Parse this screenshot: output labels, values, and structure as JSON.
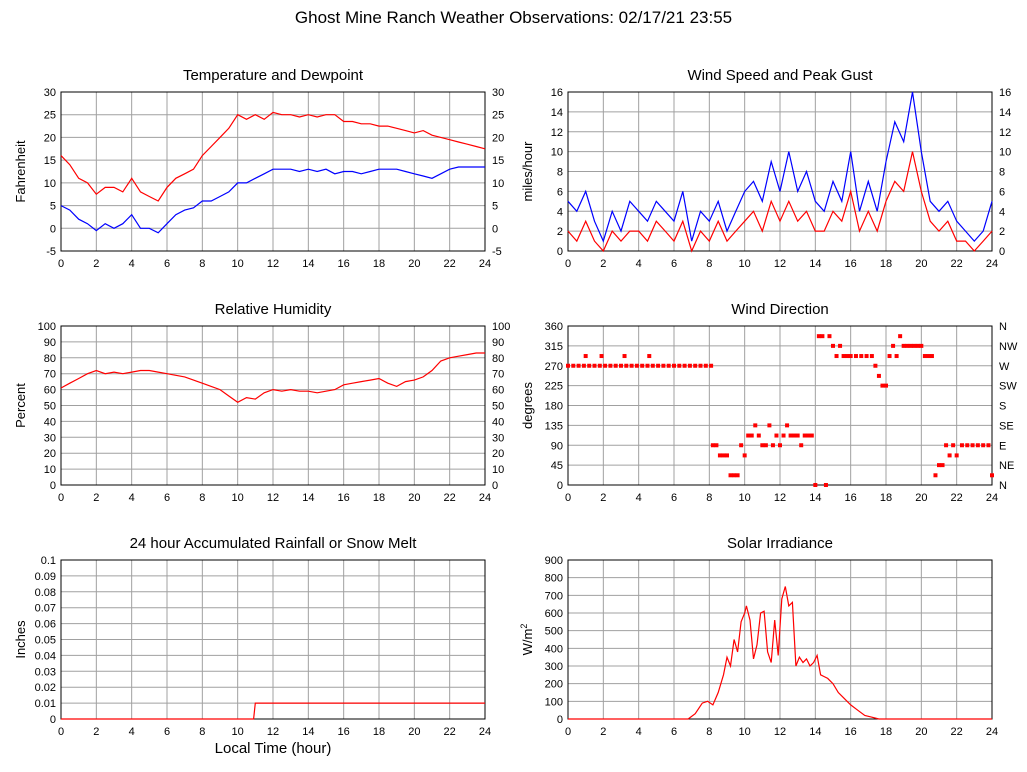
{
  "title": "Ghost Mine Ranch Weather Observations: 02/17/21 23:55",
  "colors": {
    "red": "#ff0000",
    "blue": "#0000ff",
    "grid": "#a0a0a0",
    "axis": "#000000"
  },
  "chart_data": [
    {
      "type": "line",
      "title": "Temperature and Dewpoint",
      "ylabel": "Fahrenheit",
      "xlim": [
        0,
        24
      ],
      "ylim": [
        -5,
        30
      ],
      "xticks": [
        0,
        2,
        4,
        6,
        8,
        10,
        12,
        14,
        16,
        18,
        20,
        22,
        24
      ],
      "yticks": [
        -5,
        0,
        5,
        10,
        15,
        20,
        25,
        30
      ],
      "right_axis": [
        -5,
        0,
        5,
        10,
        15,
        20,
        25,
        30
      ],
      "grid": true,
      "series": [
        {
          "color": "#ff0000",
          "x": [
            0,
            0.5,
            1,
            1.5,
            2,
            2.5,
            3,
            3.5,
            4,
            4.5,
            5,
            5.5,
            6,
            6.5,
            7,
            7.5,
            8,
            8.5,
            9,
            9.5,
            10,
            10.5,
            11,
            11.5,
            12,
            12.5,
            13,
            13.5,
            14,
            14.5,
            15,
            15.5,
            16,
            16.5,
            17,
            17.5,
            18,
            18.5,
            19,
            19.5,
            20,
            20.5,
            21,
            21.5,
            22,
            22.5,
            23,
            23.5,
            24
          ],
          "y": [
            16,
            14,
            11,
            10,
            7.5,
            9,
            9,
            8,
            11,
            8,
            7,
            6,
            9,
            11,
            12,
            13,
            16,
            18,
            20,
            22,
            25,
            24,
            25,
            24,
            25.5,
            25,
            25,
            24.5,
            25,
            24.5,
            25,
            25,
            23.5,
            23.5,
            23,
            23,
            22.5,
            22.5,
            22,
            21.5,
            21,
            21.5,
            20.5,
            20,
            19.5,
            19,
            18.5,
            18,
            17.5
          ]
        },
        {
          "color": "#0000ff",
          "x": [
            0,
            0.5,
            1,
            1.5,
            2,
            2.5,
            3,
            3.5,
            4,
            4.5,
            5,
            5.5,
            6,
            6.5,
            7,
            7.5,
            8,
            8.5,
            9,
            9.5,
            10,
            10.5,
            11,
            11.5,
            12,
            12.5,
            13,
            13.5,
            14,
            14.5,
            15,
            15.5,
            16,
            16.5,
            17,
            17.5,
            18,
            18.5,
            19,
            19.5,
            20,
            20.5,
            21,
            21.5,
            22,
            22.5,
            23,
            23.5,
            24
          ],
          "y": [
            5,
            4,
            2,
            1,
            -0.5,
            1,
            0,
            1,
            3,
            0,
            0,
            -1,
            1,
            3,
            4,
            4.5,
            6,
            6,
            7,
            8,
            10,
            10,
            11,
            12,
            13,
            13,
            13,
            12.5,
            13,
            12.5,
            13,
            12,
            12.5,
            12.5,
            12,
            12.5,
            13,
            13,
            13,
            12.5,
            12,
            11.5,
            11,
            12,
            13,
            13.5,
            13.5,
            13.5,
            13.5
          ]
        }
      ]
    },
    {
      "type": "line",
      "title": "Wind Speed and Peak Gust",
      "ylabel": "miles/hour",
      "xlim": [
        0,
        24
      ],
      "ylim": [
        0,
        16
      ],
      "xticks": [
        0,
        2,
        4,
        6,
        8,
        10,
        12,
        14,
        16,
        18,
        20,
        22,
        24
      ],
      "yticks": [
        0,
        2,
        4,
        6,
        8,
        10,
        12,
        14,
        16
      ],
      "right_axis": [
        0,
        2,
        4,
        6,
        8,
        10,
        12,
        14,
        16
      ],
      "grid": true,
      "series": [
        {
          "color": "#0000ff",
          "x": [
            0,
            0.5,
            1,
            1.5,
            2,
            2.5,
            3,
            3.5,
            4,
            4.5,
            5,
            5.5,
            6,
            6.5,
            7,
            7.5,
            8,
            8.5,
            9,
            9.5,
            10,
            10.5,
            11,
            11.5,
            12,
            12.5,
            13,
            13.5,
            14,
            14.5,
            15,
            15.5,
            16,
            16.5,
            17,
            17.5,
            18,
            18.5,
            19,
            19.5,
            20,
            20.5,
            21,
            21.5,
            22,
            22.5,
            23,
            23.5,
            24
          ],
          "y": [
            5,
            4,
            6,
            3,
            1,
            4,
            2,
            5,
            4,
            3,
            5,
            4,
            3,
            6,
            1,
            4,
            3,
            5,
            2,
            4,
            6,
            7,
            5,
            9,
            6,
            10,
            6,
            8,
            5,
            4,
            7,
            5,
            10,
            4,
            7,
            4,
            9,
            13,
            11,
            16,
            10,
            5,
            4,
            5,
            3,
            2,
            1,
            2,
            5
          ]
        },
        {
          "color": "#ff0000",
          "x": [
            0,
            0.5,
            1,
            1.5,
            2,
            2.5,
            3,
            3.5,
            4,
            4.5,
            5,
            5.5,
            6,
            6.5,
            7,
            7.5,
            8,
            8.5,
            9,
            9.5,
            10,
            10.5,
            11,
            11.5,
            12,
            12.5,
            13,
            13.5,
            14,
            14.5,
            15,
            15.5,
            16,
            16.5,
            17,
            17.5,
            18,
            18.5,
            19,
            19.5,
            20,
            20.5,
            21,
            21.5,
            22,
            22.5,
            23,
            23.5,
            24
          ],
          "y": [
            2,
            1,
            3,
            1,
            0,
            2,
            1,
            2,
            2,
            1,
            3,
            2,
            1,
            3,
            0,
            2,
            1,
            3,
            1,
            2,
            3,
            4,
            2,
            5,
            3,
            5,
            3,
            4,
            2,
            2,
            4,
            3,
            6,
            2,
            4,
            2,
            5,
            7,
            6,
            10,
            6,
            3,
            2,
            3,
            1,
            1,
            0,
            1,
            2
          ]
        }
      ]
    },
    {
      "type": "line",
      "title": "Relative Humidity",
      "ylabel": "Percent",
      "xlim": [
        0,
        24
      ],
      "ylim": [
        0,
        100
      ],
      "xticks": [
        0,
        2,
        4,
        6,
        8,
        10,
        12,
        14,
        16,
        18,
        20,
        22,
        24
      ],
      "yticks": [
        0,
        10,
        20,
        30,
        40,
        50,
        60,
        70,
        80,
        90,
        100
      ],
      "right_axis": [
        0,
        10,
        20,
        30,
        40,
        50,
        60,
        70,
        80,
        90,
        100
      ],
      "grid": true,
      "series": [
        {
          "color": "#ff0000",
          "x": [
            0,
            0.5,
            1,
            1.5,
            2,
            2.5,
            3,
            3.5,
            4,
            4.5,
            5,
            5.5,
            6,
            6.5,
            7,
            7.5,
            8,
            8.5,
            9,
            9.5,
            10,
            10.5,
            11,
            11.5,
            12,
            12.5,
            13,
            13.5,
            14,
            14.5,
            15,
            15.5,
            16,
            16.5,
            17,
            17.5,
            18,
            18.5,
            19,
            19.5,
            20,
            20.5,
            21,
            21.5,
            22,
            22.5,
            23,
            23.5,
            24
          ],
          "y": [
            61,
            64,
            67,
            70,
            72,
            70,
            71,
            70,
            71,
            72,
            72,
            71,
            70,
            69,
            68,
            66,
            64,
            62,
            60,
            56,
            52,
            55,
            54,
            58,
            60,
            59,
            60,
            59,
            59,
            58,
            59,
            60,
            63,
            64,
            65,
            66,
            67,
            64,
            62,
            65,
            66,
            68,
            72,
            78,
            80,
            81,
            82,
            83,
            83
          ]
        }
      ]
    },
    {
      "type": "scatter",
      "title": "Wind Direction",
      "ylabel": "degrees",
      "xlim": [
        0,
        24
      ],
      "ylim": [
        0,
        360
      ],
      "xticks": [
        0,
        2,
        4,
        6,
        8,
        10,
        12,
        14,
        16,
        18,
        20,
        22,
        24
      ],
      "yticks": [
        0,
        45,
        90,
        135,
        180,
        225,
        270,
        315,
        360
      ],
      "right_axis_labels": [
        "N",
        "NE",
        "E",
        "SE",
        "S",
        "SW",
        "W",
        "NW",
        "N"
      ],
      "grid": true,
      "series": [
        {
          "color": "#ff0000",
          "x": [
            0,
            0.3,
            0.6,
            0.9,
            1.0,
            1.2,
            1.5,
            1.8,
            1.9,
            2.1,
            2.4,
            2.7,
            3.0,
            3.2,
            3.3,
            3.6,
            3.9,
            4.2,
            4.5,
            4.6,
            4.8,
            5.1,
            5.4,
            5.7,
            6.0,
            6.3,
            6.6,
            6.9,
            7.2,
            7.5,
            7.8,
            8.1,
            8.2,
            8.4,
            8.6,
            8.8,
            9.0,
            9.2,
            9.4,
            9.6,
            9.8,
            10.0,
            10.2,
            10.4,
            10.6,
            10.8,
            11.0,
            11.2,
            11.4,
            11.6,
            11.8,
            12.0,
            12.2,
            12.4,
            12.6,
            12.8,
            13.0,
            13.2,
            13.4,
            13.6,
            13.8,
            14.0,
            14.2,
            14.4,
            14.6,
            14.8,
            15.0,
            15.2,
            15.4,
            15.6,
            15.8,
            16.0,
            16.3,
            16.6,
            16.9,
            17.2,
            17.4,
            17.6,
            17.8,
            18.0,
            18.2,
            18.4,
            18.6,
            18.8,
            19.0,
            19.2,
            19.4,
            19.6,
            19.8,
            20.0,
            20.2,
            20.4,
            20.6,
            20.8,
            21.0,
            21.2,
            21.4,
            21.6,
            21.8,
            22.0,
            22.3,
            22.6,
            22.9,
            23.2,
            23.5,
            23.8,
            24.0
          ],
          "y": [
            270,
            270,
            270,
            270,
            292,
            270,
            270,
            270,
            292,
            270,
            270,
            270,
            270,
            292,
            270,
            270,
            270,
            270,
            270,
            292,
            270,
            270,
            270,
            270,
            270,
            270,
            270,
            270,
            270,
            270,
            270,
            270,
            90,
            90,
            67,
            67,
            67,
            22,
            22,
            22,
            90,
            67,
            112,
            112,
            135,
            112,
            90,
            90,
            135,
            90,
            112,
            90,
            112,
            135,
            112,
            112,
            112,
            90,
            112,
            112,
            112,
            0,
            337,
            337,
            0,
            337,
            315,
            292,
            315,
            292,
            292,
            292,
            292,
            292,
            292,
            292,
            270,
            247,
            225,
            225,
            292,
            315,
            292,
            337,
            315,
            315,
            315,
            315,
            315,
            315,
            292,
            292,
            292,
            22,
            45,
            45,
            90,
            67,
            90,
            67,
            90,
            90,
            90,
            90,
            90,
            90,
            22
          ]
        }
      ]
    },
    {
      "type": "line",
      "title": "24 hour Accumulated Rainfall or Snow Melt",
      "ylabel": "Inches",
      "xlabel": "Local Time (hour)",
      "xlim": [
        0,
        24
      ],
      "ylim": [
        0,
        0.1
      ],
      "xticks": [
        0,
        2,
        4,
        6,
        8,
        10,
        12,
        14,
        16,
        18,
        20,
        22,
        24
      ],
      "yticks": [
        0,
        0.01,
        0.02,
        0.03,
        0.04,
        0.05,
        0.06,
        0.07,
        0.08,
        0.09,
        0.1
      ],
      "grid": true,
      "series": [
        {
          "color": "#ff0000",
          "x": [
            0,
            10.9,
            11.0,
            24
          ],
          "y": [
            0,
            0,
            0.01,
            0.01
          ]
        }
      ]
    },
    {
      "type": "line",
      "title": "Solar Irradiance",
      "ylabel": "W/m",
      "ylabel_sup": "2",
      "xlim": [
        0,
        24
      ],
      "ylim": [
        0,
        900
      ],
      "xticks": [
        0,
        2,
        4,
        6,
        8,
        10,
        12,
        14,
        16,
        18,
        20,
        22,
        24
      ],
      "yticks": [
        0,
        100,
        200,
        300,
        400,
        500,
        600,
        700,
        800,
        900
      ],
      "grid": true,
      "series": [
        {
          "color": "#ff0000",
          "x": [
            0,
            6.8,
            7.2,
            7.6,
            7.9,
            8.2,
            8.5,
            8.8,
            9.0,
            9.2,
            9.4,
            9.6,
            9.8,
            10.0,
            10.1,
            10.3,
            10.5,
            10.7,
            10.9,
            11.1,
            11.3,
            11.5,
            11.7,
            11.9,
            12.1,
            12.3,
            12.5,
            12.7,
            12.9,
            13.1,
            13.3,
            13.5,
            13.7,
            13.9,
            14.1,
            14.3,
            14.5,
            14.7,
            15.0,
            15.3,
            15.6,
            16.0,
            16.4,
            16.8,
            17.2,
            17.6,
            18.0,
            24
          ],
          "y": [
            0,
            0,
            30,
            90,
            100,
            80,
            150,
            250,
            350,
            300,
            450,
            380,
            550,
            600,
            640,
            560,
            340,
            420,
            600,
            610,
            380,
            320,
            560,
            360,
            680,
            750,
            640,
            660,
            300,
            350,
            320,
            340,
            300,
            320,
            360,
            250,
            240,
            230,
            200,
            150,
            120,
            80,
            50,
            20,
            10,
            0,
            0,
            0
          ]
        }
      ]
    }
  ]
}
